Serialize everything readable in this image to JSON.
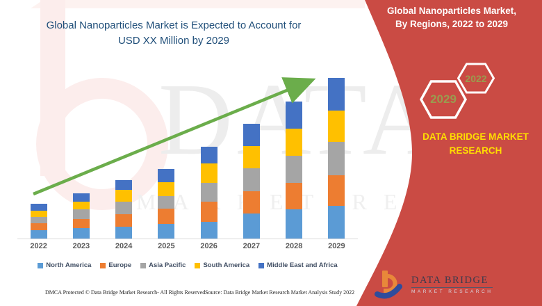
{
  "page": {
    "title_line1": "Global Nanoparticles Market is Expected to Account for",
    "title_line2": "USD XX Million by 2029"
  },
  "chart_data": {
    "type": "bar",
    "stacked": true,
    "title": "Global Nanoparticles Market is Expected to Account for USD XX Million by 2029",
    "categories": [
      "2022",
      "2023",
      "2024",
      "2025",
      "2026",
      "2027",
      "2028",
      "2029"
    ],
    "series": [
      {
        "name": "North America",
        "color": "#5B9BD5",
        "values": [
          12,
          15,
          17,
          21,
          24,
          36,
          42,
          47
        ]
      },
      {
        "name": "Europe",
        "color": "#ED7D31",
        "values": [
          10,
          13,
          18,
          22,
          29,
          32,
          38,
          44
        ]
      },
      {
        "name": "Asia Pacific",
        "color": "#A5A5A5",
        "values": [
          9,
          14,
          18,
          18,
          27,
          33,
          39,
          48
        ]
      },
      {
        "name": "South America",
        "color": "#FFC000",
        "values": [
          9,
          11,
          17,
          20,
          28,
          32,
          39,
          45
        ]
      },
      {
        "name": "Middle East and Africa",
        "color": "#4472C4",
        "values": [
          10,
          12,
          14,
          19,
          24,
          32,
          39,
          47
        ]
      }
    ],
    "xlabel": "",
    "ylabel": "",
    "value_axis_visible": false,
    "values_note": "relative units estimated from bar pixel heights; actual values undisclosed (USD XX Million)",
    "legend_position": "bottom",
    "grid": false,
    "trend_arrow_color": "#6BAD4B"
  },
  "right_panel": {
    "heading_line1": "Global Nanoparticles Market,",
    "heading_line2": "By Regions, 2022 to 2029",
    "hex_small_year": "2022",
    "hex_large_year": "2029",
    "brand_line1": "DATA BRIDGE MARKET",
    "brand_line2": "RESEARCH",
    "background_color": "#CA4B44",
    "brand_text_color": "#FFDF00",
    "hex_text_color": "#9A9B4F"
  },
  "logo": {
    "name": "DATA BRIDGE",
    "subtitle": "MARKET RESEARCH"
  },
  "watermark": {
    "line1": "DATA BRI",
    "line2": "MARKET RESEARCH"
  },
  "footer": {
    "left": "DMCA Protected © Data Bridge Market Research- All Rights Reserved.",
    "source": "Source: Data Bridge Market Research Market Analysis Study 2022"
  }
}
